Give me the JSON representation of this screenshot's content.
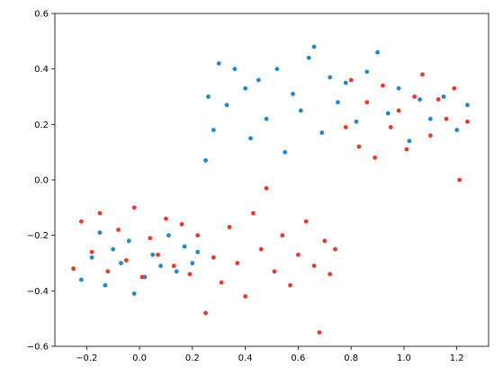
{
  "chart_data": {
    "type": "scatter",
    "title": "",
    "xlabel": "",
    "ylabel": "",
    "xlim": [
      -0.32,
      1.32
    ],
    "ylim": [
      -0.6,
      0.6
    ],
    "grid": false,
    "legend": "none",
    "xticks": [
      "−0.2",
      "0.0",
      "0.2",
      "0.4",
      "0.6",
      "0.8",
      "1.0",
      "1.2"
    ],
    "xtick_values": [
      -0.2,
      0.0,
      0.2,
      0.4,
      0.6,
      0.8,
      1.0,
      1.2
    ],
    "yticks": [
      "−0.6",
      "−0.4",
      "−0.2",
      "0.0",
      "0.2",
      "0.4",
      "0.6"
    ],
    "ytick_values": [
      -0.6,
      -0.4,
      -0.2,
      0.0,
      0.2,
      0.4,
      0.6
    ],
    "series": [
      {
        "color": "#1f8ac9",
        "points": [
          [
            0.25,
            0.07
          ],
          [
            0.26,
            0.3
          ],
          [
            0.28,
            0.18
          ],
          [
            0.3,
            0.42
          ],
          [
            0.33,
            0.27
          ],
          [
            0.36,
            0.4
          ],
          [
            0.4,
            0.33
          ],
          [
            0.42,
            0.15
          ],
          [
            0.45,
            0.36
          ],
          [
            0.48,
            0.22
          ],
          [
            0.52,
            0.4
          ],
          [
            0.55,
            0.1
          ],
          [
            0.58,
            0.31
          ],
          [
            0.61,
            0.25
          ],
          [
            0.64,
            0.44
          ],
          [
            0.66,
            0.48
          ],
          [
            0.69,
            0.17
          ],
          [
            0.72,
            0.37
          ],
          [
            0.75,
            0.28
          ],
          [
            0.78,
            0.35
          ],
          [
            0.82,
            0.21
          ],
          [
            0.86,
            0.39
          ],
          [
            0.9,
            0.46
          ],
          [
            0.94,
            0.24
          ],
          [
            0.98,
            0.33
          ],
          [
            1.02,
            0.14
          ],
          [
            1.06,
            0.29
          ],
          [
            1.1,
            0.22
          ],
          [
            1.15,
            0.3
          ],
          [
            1.2,
            0.18
          ],
          [
            1.24,
            0.27
          ],
          [
            -0.22,
            -0.36
          ],
          [
            -0.18,
            -0.28
          ],
          [
            -0.15,
            -0.19
          ],
          [
            -0.13,
            -0.38
          ],
          [
            -0.1,
            -0.25
          ],
          [
            -0.07,
            -0.3
          ],
          [
            -0.04,
            -0.22
          ],
          [
            -0.02,
            -0.41
          ],
          [
            0.02,
            -0.35
          ],
          [
            0.05,
            -0.27
          ],
          [
            0.08,
            -0.31
          ],
          [
            0.11,
            -0.2
          ],
          [
            0.14,
            -0.33
          ],
          [
            0.17,
            -0.24
          ],
          [
            0.2,
            -0.3
          ],
          [
            0.22,
            -0.26
          ]
        ]
      },
      {
        "color": "#e8392c",
        "points": [
          [
            -0.25,
            -0.32
          ],
          [
            -0.22,
            -0.15
          ],
          [
            -0.18,
            -0.26
          ],
          [
            -0.15,
            -0.12
          ],
          [
            -0.12,
            -0.33
          ],
          [
            -0.08,
            -0.18
          ],
          [
            -0.05,
            -0.29
          ],
          [
            -0.02,
            -0.1
          ],
          [
            0.01,
            -0.35
          ],
          [
            0.04,
            -0.21
          ],
          [
            0.07,
            -0.27
          ],
          [
            0.1,
            -0.14
          ],
          [
            0.13,
            -0.31
          ],
          [
            0.16,
            -0.16
          ],
          [
            0.19,
            -0.34
          ],
          [
            0.22,
            -0.2
          ],
          [
            0.25,
            -0.48
          ],
          [
            0.28,
            -0.28
          ],
          [
            0.31,
            -0.37
          ],
          [
            0.34,
            -0.17
          ],
          [
            0.37,
            -0.3
          ],
          [
            0.4,
            -0.42
          ],
          [
            0.43,
            -0.12
          ],
          [
            0.46,
            -0.25
          ],
          [
            0.48,
            -0.03
          ],
          [
            0.51,
            -0.33
          ],
          [
            0.54,
            -0.2
          ],
          [
            0.57,
            -0.38
          ],
          [
            0.6,
            -0.27
          ],
          [
            0.63,
            -0.15
          ],
          [
            0.66,
            -0.31
          ],
          [
            0.68,
            -0.55
          ],
          [
            0.7,
            -0.22
          ],
          [
            0.72,
            -0.34
          ],
          [
            0.74,
            -0.25
          ],
          [
            0.78,
            0.19
          ],
          [
            0.8,
            0.36
          ],
          [
            0.83,
            0.12
          ],
          [
            0.86,
            0.28
          ],
          [
            0.89,
            0.08
          ],
          [
            0.92,
            0.34
          ],
          [
            0.95,
            0.19
          ],
          [
            0.98,
            0.25
          ],
          [
            1.01,
            0.11
          ],
          [
            1.04,
            0.3
          ],
          [
            1.07,
            0.38
          ],
          [
            1.1,
            0.16
          ],
          [
            1.13,
            0.29
          ],
          [
            1.16,
            0.22
          ],
          [
            1.19,
            0.33
          ],
          [
            1.21,
            0.0
          ],
          [
            1.24,
            0.21
          ]
        ]
      }
    ]
  }
}
